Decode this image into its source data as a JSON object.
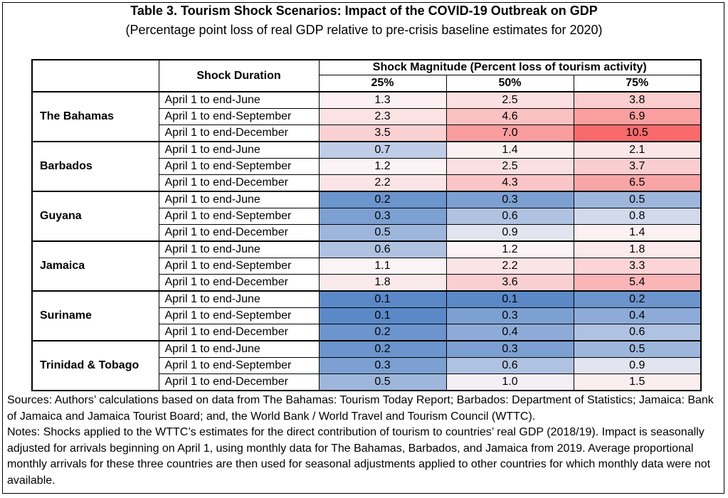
{
  "title": "Table 3. Tourism Shock Scenarios: Impact of the COVID-19 Outbreak on GDP",
  "subtitle": "(Percentage point loss of real GDP relative to pre-crisis baseline estimates for 2020)",
  "table": {
    "duration_header": "Shock Duration",
    "magnitude_header": "Shock Magnitude (Percent loss of tourism activity)",
    "magnitude_columns": [
      "25%",
      "50%",
      "75%"
    ],
    "durations": [
      "April 1 to end-June",
      "April 1 to end-September",
      "April 1 to end-December"
    ],
    "countries": [
      {
        "name": "The Bahamas",
        "rows": [
          [
            "1.3",
            "2.5",
            "3.8"
          ],
          [
            "2.3",
            "4.6",
            "6.9"
          ],
          [
            "3.5",
            "7.0",
            "10.5"
          ]
        ]
      },
      {
        "name": "Barbados",
        "rows": [
          [
            "0.7",
            "1.4",
            "2.1"
          ],
          [
            "1.2",
            "2.5",
            "3.7"
          ],
          [
            "2.2",
            "4.3",
            "6.5"
          ]
        ]
      },
      {
        "name": "Guyana",
        "rows": [
          [
            "0.2",
            "0.3",
            "0.5"
          ],
          [
            "0.3",
            "0.6",
            "0.8"
          ],
          [
            "0.5",
            "0.9",
            "1.4"
          ]
        ]
      },
      {
        "name": "Jamaica",
        "rows": [
          [
            "0.6",
            "1.2",
            "1.8"
          ],
          [
            "1.1",
            "2.2",
            "3.3"
          ],
          [
            "1.8",
            "3.6",
            "5.4"
          ]
        ]
      },
      {
        "name": "Suriname",
        "rows": [
          [
            "0.1",
            "0.1",
            "0.2"
          ],
          [
            "0.1",
            "0.3",
            "0.4"
          ],
          [
            "0.2",
            "0.4",
            "0.6"
          ]
        ]
      },
      {
        "name": "Trinidad & Tobago",
        "rows": [
          [
            "0.2",
            "0.3",
            "0.5"
          ],
          [
            "0.3",
            "0.6",
            "0.9"
          ],
          [
            "0.5",
            "1.0",
            "1.5"
          ]
        ]
      }
    ],
    "heatmap_colors": {
      "low": "#5b89c8",
      "mid": "#fbf5f7",
      "high": "#f86a6b"
    }
  },
  "notes": [
    "Sources: Authors’ calculations based on data from The Bahamas: Tourism Today Report; Barbados: Department of Statistics; Jamaica: Bank of Jamaica and Jamaica Tourist Board; and, the World Bank / World Travel and Tourism Council (WTTC).",
    "Notes: Shocks applied to the WTTC’s estimates for the direct contribution of tourism to countries’ real GDP (2018/19). Impact is seasonally adjusted for arrivals beginning on April 1, using monthly data for The Bahamas, Barbados, and Jamaica from 2019. Average proportional monthly arrivals for these three countries are then used for seasonal adjustments applied to other countries for which monthly data were not available."
  ]
}
